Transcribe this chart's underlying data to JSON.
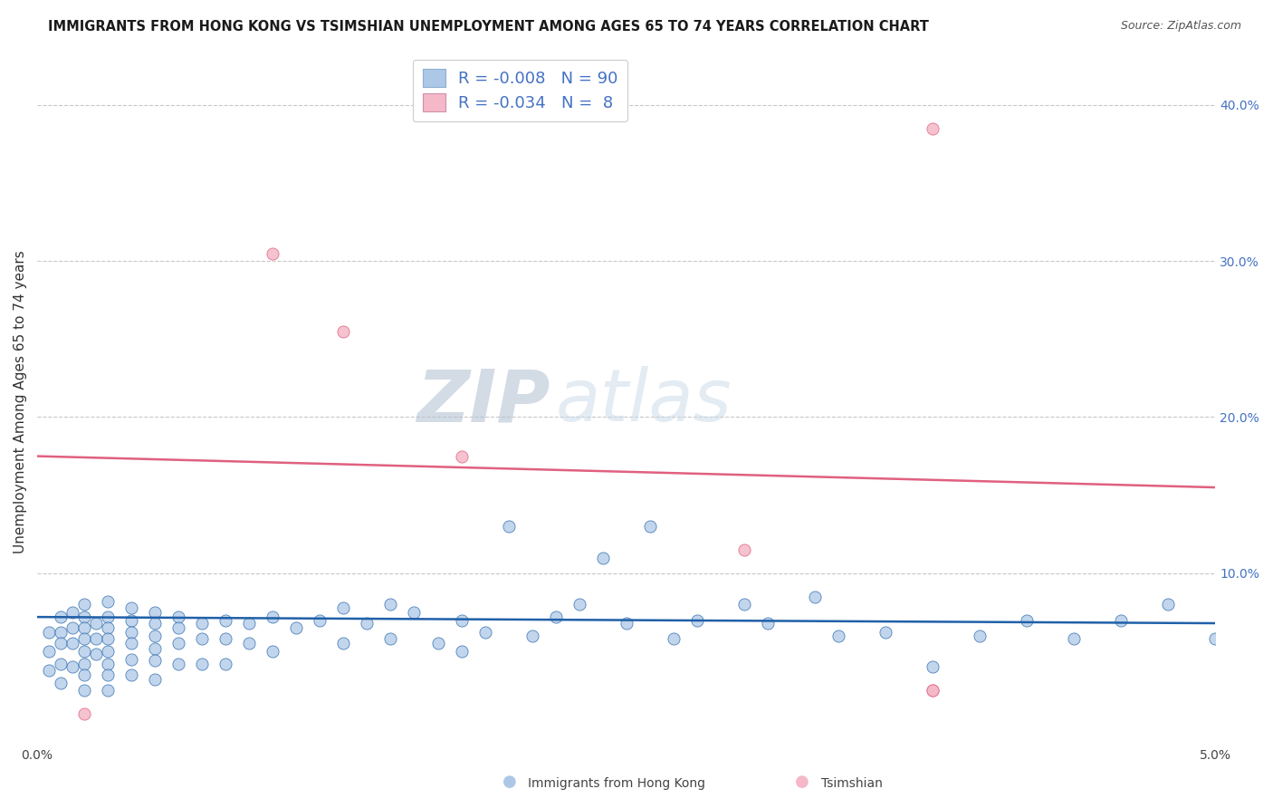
{
  "title": "IMMIGRANTS FROM HONG KONG VS TSIMSHIAN UNEMPLOYMENT AMONG AGES 65 TO 74 YEARS CORRELATION CHART",
  "source": "Source: ZipAtlas.com",
  "ylabel": "Unemployment Among Ages 65 to 74 years",
  "xlim": [
    0.0,
    0.05
  ],
  "ylim": [
    -0.01,
    0.43
  ],
  "legend_r1": "R = -0.008",
  "legend_n1": "N = 90",
  "legend_r2": "R = -0.034",
  "legend_n2": "N =  8",
  "series1_color": "#adc8e6",
  "series2_color": "#f4b8c8",
  "line1_color": "#2060a8",
  "line2_color": "#e06080",
  "watermark_zip": "ZIP",
  "watermark_atlas": "atlas",
  "background_color": "#ffffff",
  "grid_color": "#c8c8c8",
  "blue_scatter_x": [
    0.0005,
    0.0005,
    0.0005,
    0.001,
    0.001,
    0.001,
    0.001,
    0.001,
    0.0015,
    0.0015,
    0.0015,
    0.0015,
    0.002,
    0.002,
    0.002,
    0.002,
    0.002,
    0.002,
    0.002,
    0.002,
    0.0025,
    0.0025,
    0.0025,
    0.003,
    0.003,
    0.003,
    0.003,
    0.003,
    0.003,
    0.003,
    0.003,
    0.004,
    0.004,
    0.004,
    0.004,
    0.004,
    0.004,
    0.005,
    0.005,
    0.005,
    0.005,
    0.005,
    0.005,
    0.006,
    0.006,
    0.006,
    0.006,
    0.007,
    0.007,
    0.007,
    0.008,
    0.008,
    0.008,
    0.009,
    0.009,
    0.01,
    0.01,
    0.011,
    0.012,
    0.013,
    0.013,
    0.014,
    0.015,
    0.015,
    0.016,
    0.017,
    0.018,
    0.018,
    0.019,
    0.02,
    0.021,
    0.022,
    0.023,
    0.024,
    0.025,
    0.026,
    0.027,
    0.028,
    0.03,
    0.031,
    0.033,
    0.034,
    0.036,
    0.038,
    0.04,
    0.042,
    0.044,
    0.046,
    0.048,
    0.05
  ],
  "blue_scatter_y": [
    0.062,
    0.05,
    0.038,
    0.072,
    0.062,
    0.055,
    0.042,
    0.03,
    0.075,
    0.065,
    0.055,
    0.04,
    0.08,
    0.072,
    0.065,
    0.058,
    0.05,
    0.042,
    0.035,
    0.025,
    0.068,
    0.058,
    0.048,
    0.082,
    0.072,
    0.065,
    0.058,
    0.05,
    0.042,
    0.035,
    0.025,
    0.078,
    0.07,
    0.062,
    0.055,
    0.045,
    0.035,
    0.075,
    0.068,
    0.06,
    0.052,
    0.044,
    0.032,
    0.072,
    0.065,
    0.055,
    0.042,
    0.068,
    0.058,
    0.042,
    0.07,
    0.058,
    0.042,
    0.068,
    0.055,
    0.072,
    0.05,
    0.065,
    0.07,
    0.078,
    0.055,
    0.068,
    0.08,
    0.058,
    0.075,
    0.055,
    0.07,
    0.05,
    0.062,
    0.13,
    0.06,
    0.072,
    0.08,
    0.11,
    0.068,
    0.13,
    0.058,
    0.07,
    0.08,
    0.068,
    0.085,
    0.06,
    0.062,
    0.04,
    0.06,
    0.07,
    0.058,
    0.07,
    0.08,
    0.058
  ],
  "pink_scatter_x": [
    0.002,
    0.01,
    0.013,
    0.018,
    0.03,
    0.038,
    0.038,
    0.038
  ],
  "pink_scatter_y": [
    0.01,
    0.305,
    0.255,
    0.175,
    0.115,
    0.385,
    0.025,
    0.025
  ],
  "blue_line_x": [
    0.0,
    0.05
  ],
  "blue_line_y": [
    0.072,
    0.068
  ],
  "pink_line_x": [
    0.0,
    0.05
  ],
  "pink_line_y": [
    0.175,
    0.155
  ]
}
